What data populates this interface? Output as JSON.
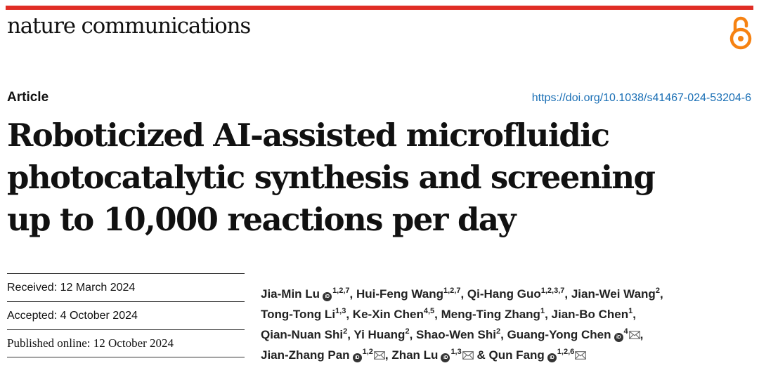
{
  "header": {
    "journal_name": "nature communications",
    "icons": {
      "open_access": "open-access-lock-icon",
      "orcid": "orcid-icon",
      "email": "envelope-icon"
    },
    "colors": {
      "bar": "#e02d25",
      "open_access": "#f68212",
      "link": "#1a6fb5"
    }
  },
  "article": {
    "type": "Article",
    "doi": "https://doi.org/10.1038/s41467-024-53204-6",
    "title_lines": [
      "Roboticized AI-assisted microfluidic",
      "photocatalytic synthesis and screening",
      "up to 10,000 reactions per day"
    ]
  },
  "dates": {
    "received": "Received: 12 March 2024",
    "accepted": "Accepted: 4 October 2024",
    "published": "Published online: 12 October 2024"
  },
  "authors": [
    {
      "name": "Jia-Min Lu",
      "aff": "1,2,7",
      "orcid": true,
      "email": false,
      "prefix": ""
    },
    {
      "name": "Hui-Feng Wang",
      "aff": "1,2,7",
      "orcid": false,
      "email": false,
      "prefix": ""
    },
    {
      "name": "Qi-Hang Guo",
      "aff": "1,2,3,7",
      "orcid": false,
      "email": false,
      "prefix": ""
    },
    {
      "name": "Jian-Wei Wang",
      "aff": "2",
      "orcid": false,
      "email": false,
      "prefix": ""
    },
    {
      "name": "Tong-Tong Li",
      "aff": "1,3",
      "orcid": false,
      "email": false,
      "prefix": ""
    },
    {
      "name": "Ke-Xin Chen",
      "aff": "4,5",
      "orcid": false,
      "email": false,
      "prefix": ""
    },
    {
      "name": "Meng-Ting Zhang",
      "aff": "1",
      "orcid": false,
      "email": false,
      "prefix": ""
    },
    {
      "name": "Jian-Bo Chen",
      "aff": "1",
      "orcid": false,
      "email": false,
      "prefix": ""
    },
    {
      "name": "Qian-Nuan Shi",
      "aff": "2",
      "orcid": false,
      "email": false,
      "prefix": ""
    },
    {
      "name": "Yi Huang",
      "aff": "2",
      "orcid": false,
      "email": false,
      "prefix": ""
    },
    {
      "name": "Shao-Wen Shi",
      "aff": "2",
      "orcid": false,
      "email": false,
      "prefix": ""
    },
    {
      "name": "Guang-Yong Chen",
      "aff": "4",
      "orcid": true,
      "email": true,
      "prefix": ""
    },
    {
      "name": "Jian-Zhang Pan",
      "aff": "1,2",
      "orcid": true,
      "email": true,
      "prefix": ""
    },
    {
      "name": "Zhan Lu",
      "aff": "1,3",
      "orcid": true,
      "email": true,
      "prefix": ""
    },
    {
      "name": "Qun Fang",
      "aff": "1,2,6",
      "orcid": true,
      "email": true,
      "prefix": "& "
    }
  ]
}
